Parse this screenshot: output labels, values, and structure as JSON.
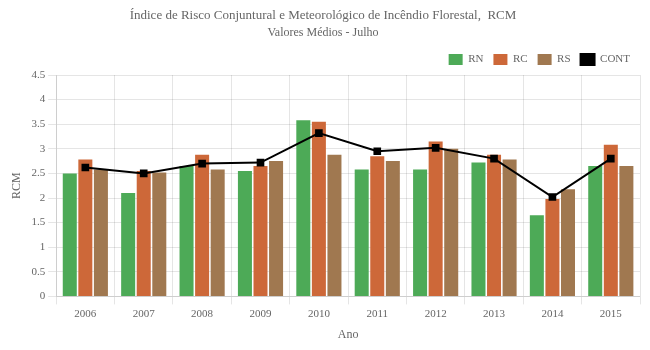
{
  "chart_data": {
    "type": "bar",
    "title": "Índice de Risco Conjuntural e Meteorológico de Incêndio Florestal,  RCM",
    "subtitle": "Valores Médios - Julho",
    "x_label": "Ano",
    "y_label": "RCM",
    "categories": [
      "2006",
      "2007",
      "2008",
      "2009",
      "2010",
      "2011",
      "2012",
      "2013",
      "2014",
      "2015"
    ],
    "series": [
      {
        "name": "RN",
        "type": "bar",
        "color": "#4daa57",
        "values": [
          2.5,
          2.1,
          2.65,
          2.55,
          3.58,
          2.58,
          2.58,
          2.72,
          1.65,
          2.65
        ]
      },
      {
        "name": "RC",
        "type": "bar",
        "color": "#cd6839",
        "values": [
          2.78,
          2.55,
          2.88,
          2.65,
          3.55,
          2.85,
          3.15,
          2.88,
          1.98,
          3.08
        ]
      },
      {
        "name": "RS",
        "type": "bar",
        "color": "#a07850",
        "values": [
          2.58,
          2.52,
          2.58,
          2.75,
          2.88,
          2.75,
          3.0,
          2.78,
          2.18,
          2.65
        ]
      },
      {
        "name": "CONT",
        "type": "line",
        "color": "#000000",
        "marker": "square",
        "line_style": "solid",
        "values": [
          2.62,
          2.5,
          2.7,
          2.72,
          3.32,
          2.95,
          3.02,
          2.8,
          2.02,
          2.8
        ]
      }
    ],
    "ylim": [
      0,
      4.5
    ],
    "yticks": [
      0,
      0.5,
      1,
      1.5,
      2,
      2.5,
      3,
      3.5,
      4,
      4.5
    ],
    "grid": true,
    "legend": "upper right"
  }
}
